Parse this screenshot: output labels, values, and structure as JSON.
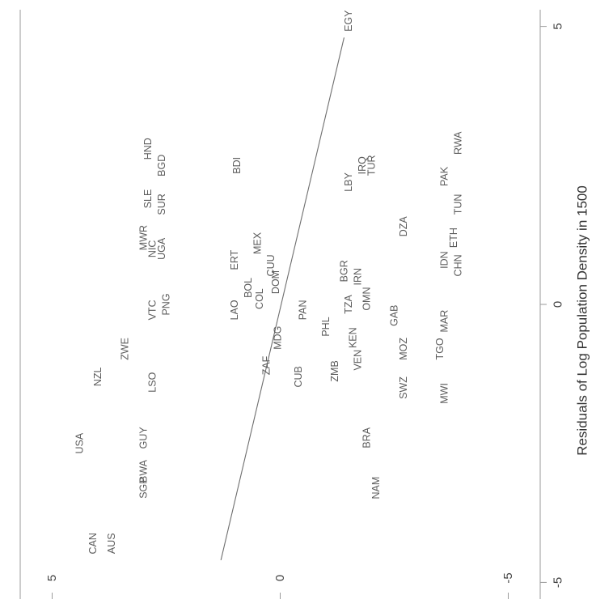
{
  "chart_data": {
    "type": "scatter",
    "orientation": "rotated-90-clockwise",
    "title": "",
    "xlabel": "Residuals of Log Population Density in 1500",
    "ylabel": "",
    "xlim": [
      -5.3,
      5.3
    ],
    "ylim": [
      -5.7,
      5.7
    ],
    "x_ticks": [
      {
        "value": -5,
        "label": "-5"
      },
      {
        "value": 0,
        "label": "0"
      },
      {
        "value": 5,
        "label": "5"
      }
    ],
    "y_ticks": [
      {
        "value": 5,
        "label": "5"
      },
      {
        "value": 0,
        "label": "0"
      },
      {
        "value": -5,
        "label": "-5"
      }
    ],
    "fit_line": {
      "x": [
        -4.6,
        4.8
      ],
      "y": [
        1.3,
        -1.4
      ]
    },
    "points": [
      {
        "label": "USA",
        "x": -2.5,
        "y": 4.4
      },
      {
        "label": "CAN",
        "x": -4.3,
        "y": 4.1
      },
      {
        "label": "AUS",
        "x": -4.3,
        "y": 3.7
      },
      {
        "label": "NZL",
        "x": -1.3,
        "y": 4.0
      },
      {
        "label": "ZWE",
        "x": -0.8,
        "y": 3.4
      },
      {
        "label": "SGP",
        "x": -3.3,
        "y": 3.0
      },
      {
        "label": "BWA",
        "x": -3.0,
        "y": 3.0
      },
      {
        "label": "GUY",
        "x": -2.4,
        "y": 3.0
      },
      {
        "label": "LSO",
        "x": -1.4,
        "y": 2.8
      },
      {
        "label": "MWR",
        "x": 1.2,
        "y": 3.0
      },
      {
        "label": "NIC",
        "x": 1.0,
        "y": 2.8
      },
      {
        "label": "UGA",
        "x": 1.0,
        "y": 2.6
      },
      {
        "label": "SUR",
        "x": 1.8,
        "y": 2.6
      },
      {
        "label": "SLE",
        "x": 1.9,
        "y": 2.9
      },
      {
        "label": "HND",
        "x": 2.8,
        "y": 2.9
      },
      {
        "label": "BGD",
        "x": 2.5,
        "y": 2.6
      },
      {
        "label": "VTC",
        "x": -0.1,
        "y": 2.8
      },
      {
        "label": "PNG",
        "x": 0.0,
        "y": 2.5
      },
      {
        "label": "BDI",
        "x": 2.5,
        "y": 0.95
      },
      {
        "label": "LAO",
        "x": -0.1,
        "y": 1.0
      },
      {
        "label": "ERT",
        "x": 0.8,
        "y": 1.0
      },
      {
        "label": "BOL",
        "x": 0.3,
        "y": 0.7
      },
      {
        "label": "COL",
        "x": 0.1,
        "y": 0.45
      },
      {
        "label": "MEX",
        "x": 1.1,
        "y": 0.5
      },
      {
        "label": "CUU",
        "x": 0.7,
        "y": 0.2
      },
      {
        "label": "DOM",
        "x": 0.4,
        "y": 0.1
      },
      {
        "label": "ZAF",
        "x": -1.1,
        "y": 0.3
      },
      {
        "label": "MDG",
        "x": -0.6,
        "y": 0.05
      },
      {
        "label": "CUB",
        "x": -1.3,
        "y": -0.4
      },
      {
        "label": "PAN",
        "x": -0.1,
        "y": -0.5
      },
      {
        "label": "PHL",
        "x": -0.4,
        "y": -1.0
      },
      {
        "label": "BRA",
        "x": -2.4,
        "y": -1.9
      },
      {
        "label": "NAM",
        "x": -3.3,
        "y": -2.1
      },
      {
        "label": "ZMB",
        "x": -1.2,
        "y": -1.2
      },
      {
        "label": "VEN",
        "x": -1.0,
        "y": -1.7
      },
      {
        "label": "KEN",
        "x": -0.6,
        "y": -1.6
      },
      {
        "label": "TZA",
        "x": 0.0,
        "y": -1.5
      },
      {
        "label": "BGR",
        "x": 0.6,
        "y": -1.4
      },
      {
        "label": "IRN",
        "x": 0.5,
        "y": -1.7
      },
      {
        "label": "OMN",
        "x": 0.1,
        "y": -1.9
      },
      {
        "label": "LBY",
        "x": 2.2,
        "y": -1.5
      },
      {
        "label": "IRQ",
        "x": 2.5,
        "y": -1.8
      },
      {
        "label": "TUR",
        "x": 2.5,
        "y": -2.0
      },
      {
        "label": "SWZ",
        "x": -1.5,
        "y": -2.7
      },
      {
        "label": "MOZ",
        "x": -0.8,
        "y": -2.7
      },
      {
        "label": "GAB",
        "x": -0.2,
        "y": -2.5
      },
      {
        "label": "DZA",
        "x": 1.4,
        "y": -2.7
      },
      {
        "label": "MWI",
        "x": -1.6,
        "y": -3.6
      },
      {
        "label": "TGO",
        "x": -0.8,
        "y": -3.5
      },
      {
        "label": "MAR",
        "x": -0.3,
        "y": -3.6
      },
      {
        "label": "IDN",
        "x": 0.8,
        "y": -3.6
      },
      {
        "label": "ETH",
        "x": 1.2,
        "y": -3.8
      },
      {
        "label": "CHN",
        "x": 0.7,
        "y": -3.9
      },
      {
        "label": "TUN",
        "x": 1.8,
        "y": -3.9
      },
      {
        "label": "PAK",
        "x": 2.3,
        "y": -3.6
      },
      {
        "label": "RWA",
        "x": 2.9,
        "y": -3.9
      },
      {
        "label": "EGY",
        "x": 5.1,
        "y": -1.5
      }
    ]
  }
}
